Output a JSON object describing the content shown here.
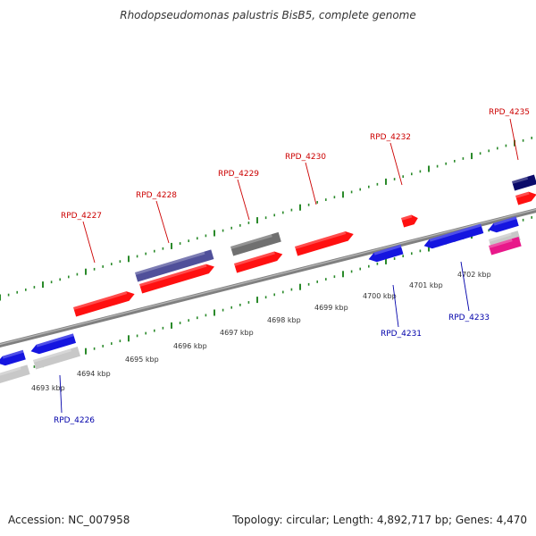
{
  "title": "Rhodopseudomonas palustris BisB5, complete genome",
  "footer": {
    "accession": "Accession: NC_007958",
    "topology": "Topology: circular; Length: 4,892,717 bp; Genes: 4,470"
  },
  "colors": {
    "background": "#ffffff",
    "backbone": "#808080",
    "tick": "#2a8a2a",
    "forward_label": "#cc0000",
    "reverse_label": "#0000aa",
    "forward_gene": "#ff1010",
    "reverse_gene": "#1515e0",
    "gray_gene": "#707070",
    "purple_gene": "#50509a",
    "navy_gene": "#0a0a6a",
    "light_gene": "#c8c8c8",
    "pink_gene": "#e8188a"
  },
  "scale_labels": [
    "4693 kbp",
    "4694 kbp",
    "4695 kbp",
    "4696 kbp",
    "4697 kbp",
    "4698 kbp",
    "4699 kbp",
    "4700 kbp",
    "4701 kbp",
    "4702 kbp"
  ],
  "gene_labels": [
    {
      "text": "RPD_4226",
      "strand": "reverse"
    },
    {
      "text": "RPD_4227",
      "strand": "forward"
    },
    {
      "text": "RPD_4228",
      "strand": "forward"
    },
    {
      "text": "RPD_4229",
      "strand": "forward"
    },
    {
      "text": "RPD_4230",
      "strand": "forward"
    },
    {
      "text": "RPD_4231",
      "strand": "reverse"
    },
    {
      "text": "RPD_4232",
      "strand": "forward"
    },
    {
      "text": "RPD_4233",
      "strand": "reverse"
    },
    {
      "text": "RPD_4235",
      "strand": "forward"
    }
  ]
}
